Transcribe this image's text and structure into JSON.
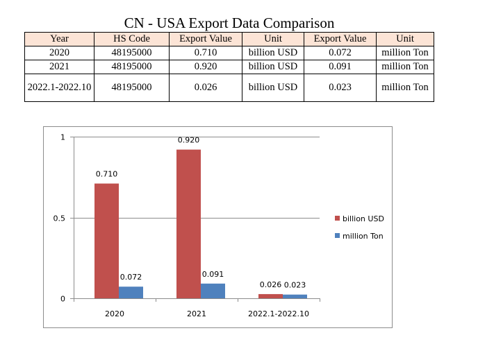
{
  "title": "CN - USA Export Data Comparison",
  "table": {
    "headers": [
      "Year",
      "HS Code",
      "Export Value",
      "Unit",
      "Export Value",
      "Unit"
    ],
    "rows": [
      [
        "2020",
        "48195000",
        "0.710",
        "billion USD",
        "0.072",
        "million Ton"
      ],
      [
        "2021",
        "48195000",
        "0.920",
        "billion USD",
        "0.091",
        "million Ton"
      ],
      [
        "2022.1-2022.10",
        "48195000",
        "0.026",
        "billion USD",
        "0.023",
        "million Ton"
      ]
    ]
  },
  "chart_data": {
    "type": "bar",
    "title": "",
    "xlabel": "",
    "ylabel": "",
    "categories": [
      "2020",
      "2021",
      "2022.1-2022.10"
    ],
    "series": [
      {
        "name": "billion USD",
        "values": [
          0.71,
          0.92,
          0.026
        ],
        "labels": [
          "0.710",
          "0.920",
          "0.026"
        ],
        "color": "#c0504d"
      },
      {
        "name": "million Ton",
        "values": [
          0.072,
          0.091,
          0.023
        ],
        "labels": [
          "0.072",
          "0.091",
          "0.023"
        ],
        "color": "#4f81bd"
      }
    ],
    "ylim": [
      0,
      1
    ],
    "yticks": [
      0,
      0.5,
      1
    ],
    "ytick_labels": [
      "0",
      "0.5",
      "1"
    ],
    "grid": true,
    "legend": "right"
  }
}
